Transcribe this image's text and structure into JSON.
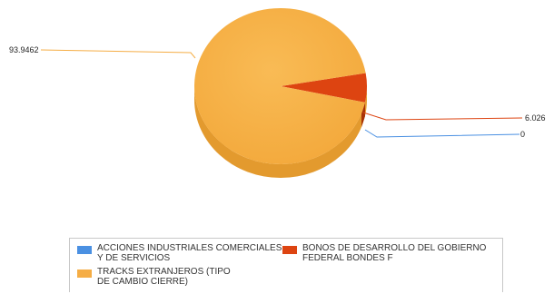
{
  "chart_data": {
    "type": "pie",
    "title": "",
    "slices": [
      {
        "label": "ACCIONES INDUSTRIALES COMERCIALES\nY DE SERVICIOS",
        "value": 0,
        "value_label": "0",
        "color": "#4a90e2"
      },
      {
        "label": "BONOS DE DESARROLLO DEL GOBIERNO\nFEDERAL BONDES F",
        "value": 6.026,
        "value_label": "6.026",
        "color": "#dd4411"
      },
      {
        "label": "TRACKS EXTRANJEROS (TIPO\nDE CAMBIO CIERRE)",
        "value": 93.9462,
        "value_label": "93.9462",
        "color": "#f5ad45"
      }
    ],
    "legend_position": "bottom"
  }
}
